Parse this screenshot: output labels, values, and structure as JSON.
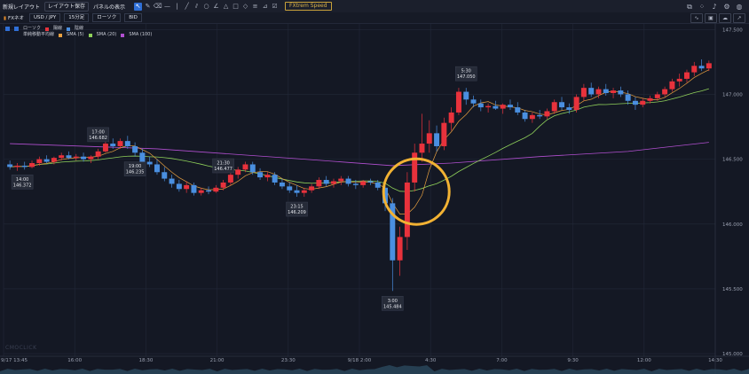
{
  "toolbar": {
    "new_layout": "新規レイアウト",
    "save_layout": "レイアウト保存",
    "panel_display": "パネルの表示",
    "fitree_speed": "FXtrem Speed",
    "tools": [
      "cursor-icon",
      "pen-icon",
      "eraser-icon",
      "hline-icon",
      "vline-icon",
      "trendline-icon",
      "ray-icon",
      "circle-icon",
      "angle-icon",
      "triangle-icon",
      "rectangle-icon",
      "diamond-icon",
      "fib-icon",
      "measure-icon",
      "checkbox-icon"
    ],
    "right_tools": [
      "layout-icon",
      "grid-icon",
      "bell-icon",
      "settings-icon",
      "globe-icon"
    ]
  },
  "symbar": {
    "broker": "FXネオ",
    "pair": "USD / JPY",
    "timeframe": "15分足",
    "chart_type": "ローソク",
    "price_type": "BID"
  },
  "legend": {
    "row1": {
      "label": "ローソク",
      "up": "陽線",
      "down": "陰線"
    },
    "row2": {
      "label": "単純移動平均線",
      "sma5": "SMA (5)",
      "sma20": "SMA (20)",
      "sma100": "SMA (100)"
    }
  },
  "watermark": "CMOCLICK",
  "colors": {
    "up": "#e8323c",
    "down": "#4a8fe0",
    "sma5": "#e8a040",
    "sma20": "#8fd05a",
    "sma100": "#b14fd0",
    "highlight": "#f2b233",
    "bg": "#141824"
  },
  "chart_data": {
    "type": "candlestick",
    "y_ticks": [
      "147.500",
      "147.000",
      "146.500",
      "146.000",
      "145.500",
      "145.000"
    ],
    "ylim": [
      144.98,
      147.55
    ],
    "x_ticks": [
      "9/17 13:45",
      "16:00",
      "18:30",
      "21:00",
      "23:30",
      "9/18 2:00",
      "4:30",
      "7:00",
      "9:30",
      "12:00",
      "14:30"
    ],
    "annotations": [
      {
        "time": "14:00",
        "price": "146.372"
      },
      {
        "time": "17:00",
        "price": "146.682"
      },
      {
        "time": "19:00",
        "price": "146.235"
      },
      {
        "time": "21:30",
        "price": "146.477"
      },
      {
        "time": "23:15",
        "price": "146.209"
      },
      {
        "time": "3:00",
        "price": "145.484"
      },
      {
        "time": "5:30",
        "price": "147.050"
      }
    ],
    "candles": [
      [
        146.46,
        146.49,
        146.42,
        146.44
      ],
      [
        146.44,
        146.47,
        146.41,
        146.45
      ],
      [
        146.45,
        146.48,
        146.42,
        146.44
      ],
      [
        146.44,
        146.49,
        146.43,
        146.47
      ],
      [
        146.47,
        146.52,
        146.45,
        146.5
      ],
      [
        146.5,
        146.53,
        146.47,
        146.48
      ],
      [
        146.48,
        146.52,
        146.46,
        146.51
      ],
      [
        146.51,
        146.55,
        146.49,
        146.53
      ],
      [
        146.53,
        146.56,
        146.5,
        146.51
      ],
      [
        146.51,
        146.54,
        146.49,
        146.52
      ],
      [
        146.52,
        146.55,
        146.48,
        146.5
      ],
      [
        146.5,
        146.53,
        146.47,
        146.52
      ],
      [
        146.52,
        146.58,
        146.5,
        146.56
      ],
      [
        146.56,
        146.64,
        146.55,
        146.62
      ],
      [
        146.62,
        146.66,
        146.58,
        146.6
      ],
      [
        146.6,
        146.66,
        146.58,
        146.64
      ],
      [
        146.64,
        146.68,
        146.58,
        146.6
      ],
      [
        146.6,
        146.63,
        146.52,
        146.55
      ],
      [
        146.55,
        146.58,
        146.46,
        146.48
      ],
      [
        146.48,
        146.52,
        146.44,
        146.46
      ],
      [
        146.46,
        146.5,
        146.38,
        146.4
      ],
      [
        146.4,
        146.44,
        146.33,
        146.35
      ],
      [
        146.35,
        146.38,
        146.28,
        146.31
      ],
      [
        146.31,
        146.34,
        146.25,
        146.27
      ],
      [
        146.27,
        146.33,
        146.24,
        146.3
      ],
      [
        146.3,
        146.32,
        146.22,
        146.24
      ],
      [
        146.24,
        146.28,
        146.22,
        146.26
      ],
      [
        146.26,
        146.29,
        146.23,
        146.25
      ],
      [
        146.25,
        146.3,
        146.24,
        146.28
      ],
      [
        146.28,
        146.34,
        146.26,
        146.32
      ],
      [
        146.32,
        146.4,
        146.3,
        146.38
      ],
      [
        146.38,
        146.44,
        146.35,
        146.42
      ],
      [
        146.42,
        146.48,
        146.4,
        146.46
      ],
      [
        146.46,
        146.48,
        146.38,
        146.4
      ],
      [
        146.4,
        146.43,
        146.34,
        146.36
      ],
      [
        146.36,
        146.4,
        146.33,
        146.38
      ],
      [
        146.38,
        146.4,
        146.3,
        146.32
      ],
      [
        146.32,
        146.35,
        146.27,
        146.29
      ],
      [
        146.29,
        146.32,
        146.24,
        146.26
      ],
      [
        146.26,
        146.3,
        146.21,
        146.24
      ],
      [
        146.24,
        146.28,
        146.21,
        146.26
      ],
      [
        146.26,
        146.31,
        146.24,
        146.29
      ],
      [
        146.29,
        146.36,
        146.27,
        146.34
      ],
      [
        146.34,
        146.37,
        146.29,
        146.31
      ],
      [
        146.31,
        146.35,
        146.28,
        146.33
      ],
      [
        146.33,
        146.37,
        146.3,
        146.35
      ],
      [
        146.35,
        146.37,
        146.29,
        146.31
      ],
      [
        146.31,
        146.34,
        146.27,
        146.3
      ],
      [
        146.3,
        146.34,
        146.28,
        146.33
      ],
      [
        146.33,
        146.35,
        146.3,
        146.32
      ],
      [
        146.32,
        146.34,
        146.26,
        146.28
      ],
      [
        146.28,
        146.3,
        146.1,
        146.16
      ],
      [
        146.16,
        146.2,
        145.484,
        145.72
      ],
      [
        145.72,
        145.98,
        145.6,
        145.9
      ],
      [
        145.9,
        146.4,
        145.8,
        146.32
      ],
      [
        146.32,
        146.62,
        146.25,
        146.55
      ],
      [
        146.55,
        146.85,
        146.48,
        146.62
      ],
      [
        146.62,
        146.8,
        146.55,
        146.7
      ],
      [
        146.7,
        146.76,
        146.56,
        146.6
      ],
      [
        146.6,
        146.82,
        146.57,
        146.78
      ],
      [
        146.78,
        146.9,
        146.72,
        146.86
      ],
      [
        146.86,
        147.05,
        146.84,
        147.02
      ],
      [
        147.02,
        147.05,
        146.92,
        146.96
      ],
      [
        146.96,
        146.99,
        146.9,
        146.93
      ],
      [
        146.93,
        146.96,
        146.87,
        146.9
      ],
      [
        146.9,
        146.93,
        146.86,
        146.91
      ],
      [
        146.91,
        146.95,
        146.88,
        146.89
      ],
      [
        146.89,
        146.93,
        146.85,
        146.92
      ],
      [
        146.92,
        146.96,
        146.88,
        146.9
      ],
      [
        146.9,
        146.94,
        146.84,
        146.86
      ],
      [
        146.86,
        146.88,
        146.79,
        146.81
      ],
      [
        146.81,
        146.86,
        146.78,
        146.84
      ],
      [
        146.84,
        146.88,
        146.81,
        146.83
      ],
      [
        146.83,
        146.89,
        146.81,
        146.87
      ],
      [
        146.87,
        146.96,
        146.85,
        146.94
      ],
      [
        146.94,
        146.98,
        146.88,
        146.9
      ],
      [
        146.9,
        146.93,
        146.85,
        146.88
      ],
      [
        146.88,
        147.0,
        146.86,
        146.98
      ],
      [
        146.98,
        147.08,
        146.95,
        147.05
      ],
      [
        147.05,
        147.09,
        146.98,
        147.0
      ],
      [
        147.0,
        147.06,
        146.97,
        147.04
      ],
      [
        147.04,
        147.08,
        146.99,
        147.01
      ],
      [
        147.01,
        147.05,
        146.97,
        147.03
      ],
      [
        147.03,
        147.06,
        146.98,
        147.0
      ],
      [
        147.0,
        147.03,
        146.92,
        146.95
      ],
      [
        146.95,
        146.98,
        146.88,
        146.92
      ],
      [
        146.92,
        146.97,
        146.9,
        146.95
      ],
      [
        146.95,
        146.99,
        146.93,
        146.97
      ],
      [
        146.97,
        147.02,
        146.95,
        147.0
      ],
      [
        147.0,
        147.06,
        146.98,
        147.04
      ],
      [
        147.04,
        147.12,
        147.02,
        147.1
      ],
      [
        147.1,
        147.16,
        147.06,
        147.12
      ],
      [
        147.12,
        147.19,
        147.09,
        147.17
      ],
      [
        147.17,
        147.25,
        147.14,
        147.22
      ],
      [
        147.22,
        147.27,
        147.18,
        147.2
      ],
      [
        147.2,
        147.26,
        147.18,
        147.24
      ]
    ],
    "sma100_points": [
      [
        0,
        146.62
      ],
      [
        20,
        146.58
      ],
      [
        40,
        146.5
      ],
      [
        52,
        146.45
      ],
      [
        60,
        146.47
      ],
      [
        72,
        146.52
      ],
      [
        84,
        146.56
      ],
      [
        95,
        146.63
      ]
    ]
  }
}
